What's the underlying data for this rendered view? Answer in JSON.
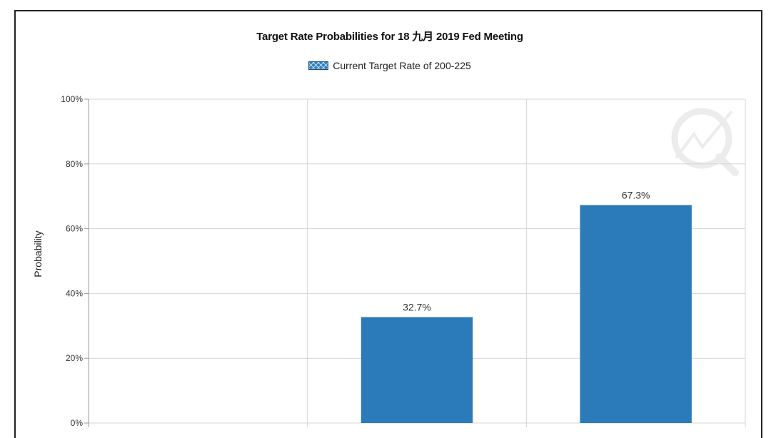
{
  "chart_data": {
    "type": "bar",
    "title": "Target Rate Probabilities for 18 九月 2019  Fed Meeting",
    "ylabel": "Probability",
    "xlabel": "",
    "ylim": [
      0,
      100
    ],
    "yticks": [
      "0%",
      "20%",
      "40%",
      "60%",
      "80%",
      "100%"
    ],
    "yticks_values": [
      0,
      20,
      40,
      60,
      80,
      100
    ],
    "grid": true,
    "legend_position": "top-center",
    "categories": [
      "",
      "",
      ""
    ],
    "series": [
      {
        "name": "Current Target Rate of 200-225",
        "values": [
          0,
          32.7,
          67.3
        ],
        "labels": [
          "",
          "32.7%",
          "67.3%"
        ],
        "color": "#2b7bba"
      }
    ]
  },
  "colors": {
    "bar": "#2b7bba",
    "grid": "#d4d4d4",
    "axis": "#999999",
    "frame_border": "#222222"
  },
  "icons": {
    "watermark": "cme-fedwatch-watermark-icon"
  }
}
